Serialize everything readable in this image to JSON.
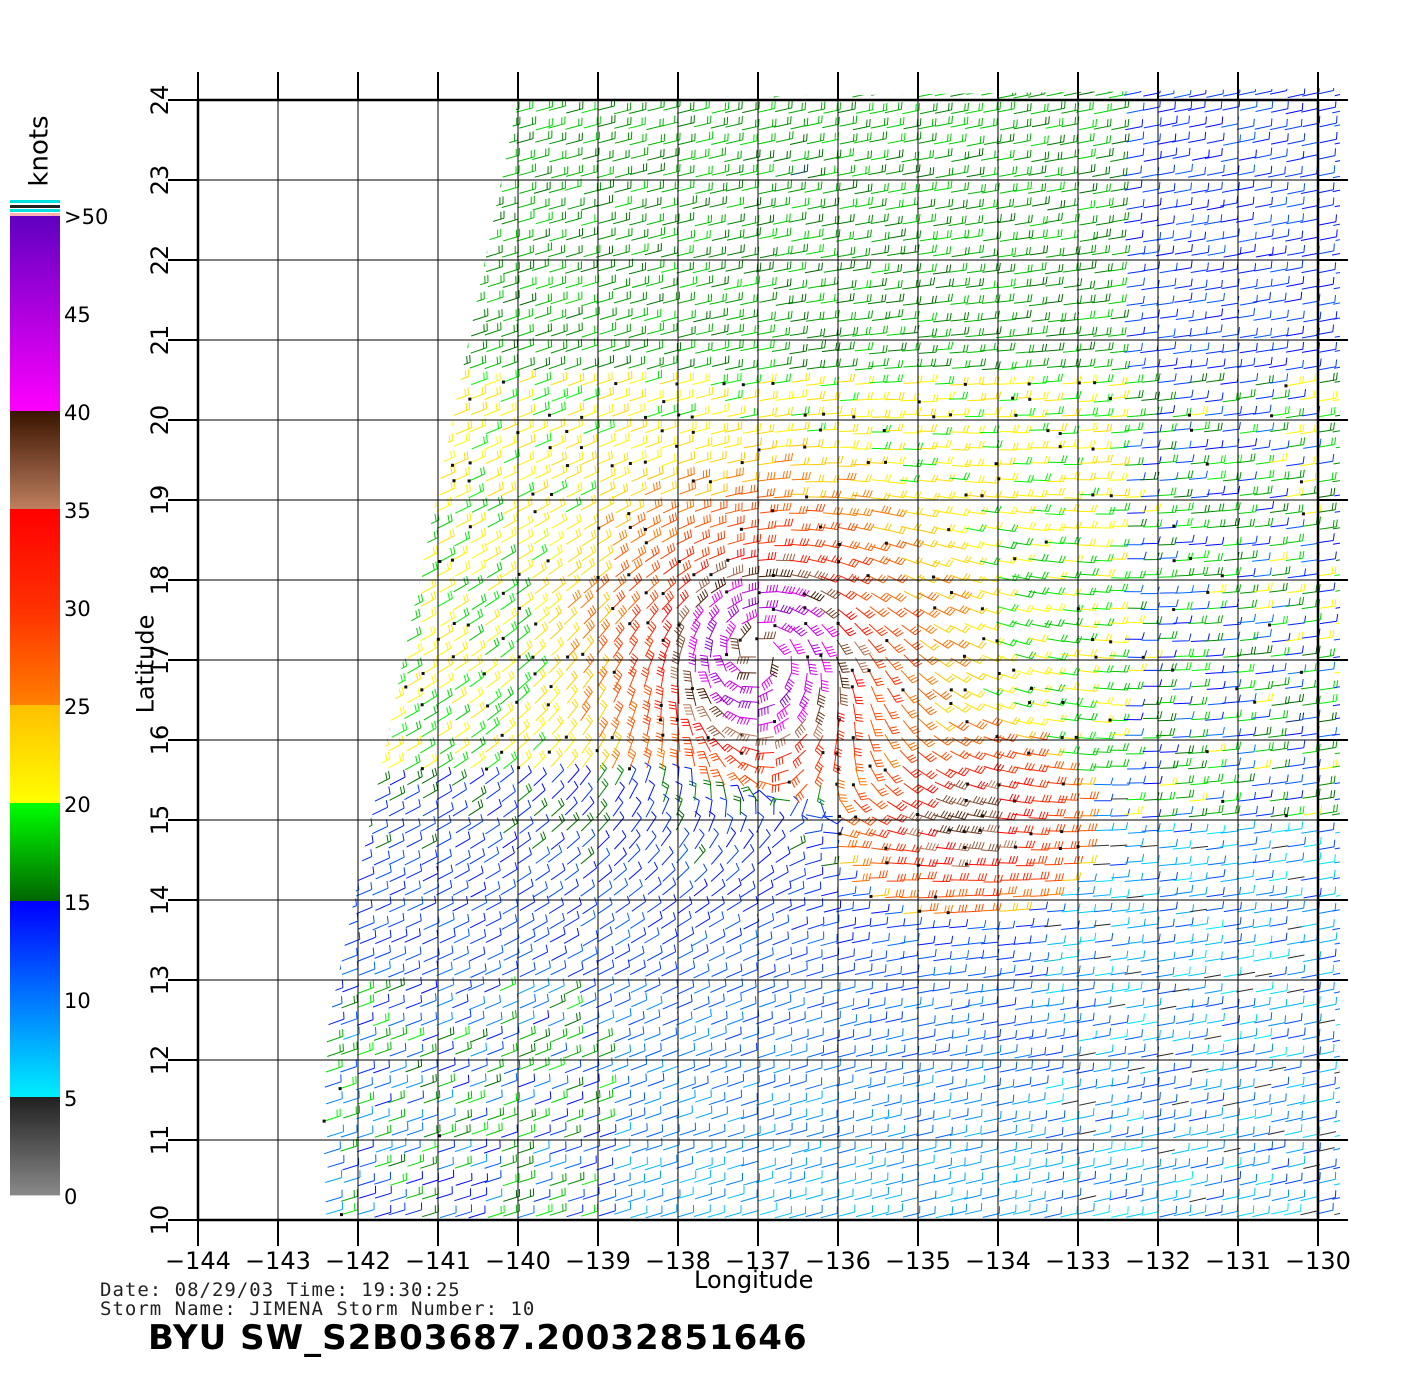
{
  "map": {
    "x_axis": {
      "label": "Longitude",
      "min": -144,
      "max": -130,
      "ticks": [
        -144,
        -143,
        -142,
        -141,
        -140,
        -139,
        -138,
        -137,
        -136,
        -135,
        -134,
        -133,
        -132,
        -131,
        -130
      ]
    },
    "y_axis": {
      "label": "Latitude",
      "min": 10,
      "max": 24,
      "ticks": [
        10,
        11,
        12,
        13,
        14,
        15,
        16,
        17,
        18,
        19,
        20,
        21,
        22,
        23,
        24
      ]
    },
    "grid": true,
    "storm_center": {
      "lon": -137.0,
      "lat": 17.1
    },
    "secondary_band_center": {
      "lon": -134.5,
      "lat": 15.0
    }
  },
  "colorbar": {
    "units": "knots",
    "labels": [
      ">50",
      "45",
      "40",
      "35",
      "30",
      "25",
      "20",
      "15",
      "10",
      "5",
      "0"
    ],
    "stops": [
      {
        "value": 0,
        "color": "#8a8a8a"
      },
      {
        "value": 5,
        "color": "#222222"
      },
      {
        "value": 5.01,
        "color": "#00f0ff"
      },
      {
        "value": 15,
        "color": "#0000ff"
      },
      {
        "value": 15.01,
        "color": "#006400"
      },
      {
        "value": 20,
        "color": "#00ff00"
      },
      {
        "value": 20.01,
        "color": "#ffff00"
      },
      {
        "value": 25,
        "color": "#ffc000"
      },
      {
        "value": 25.01,
        "color": "#ff8000"
      },
      {
        "value": 30,
        "color": "#ff3000"
      },
      {
        "value": 35,
        "color": "#ff0000"
      },
      {
        "value": 35.01,
        "color": "#c08060"
      },
      {
        "value": 40,
        "color": "#3a1500"
      },
      {
        "value": 40.01,
        "color": "#ff00ff"
      },
      {
        "value": 50,
        "color": "#6000c0"
      }
    ]
  },
  "info": {
    "date_line": "Date: 08/29/03   Time: 19:30:25",
    "storm_line": "Storm Name: JIMENA   Storm Number: 10",
    "file_id": "BYU SW_S2B03687.20032851646"
  }
}
